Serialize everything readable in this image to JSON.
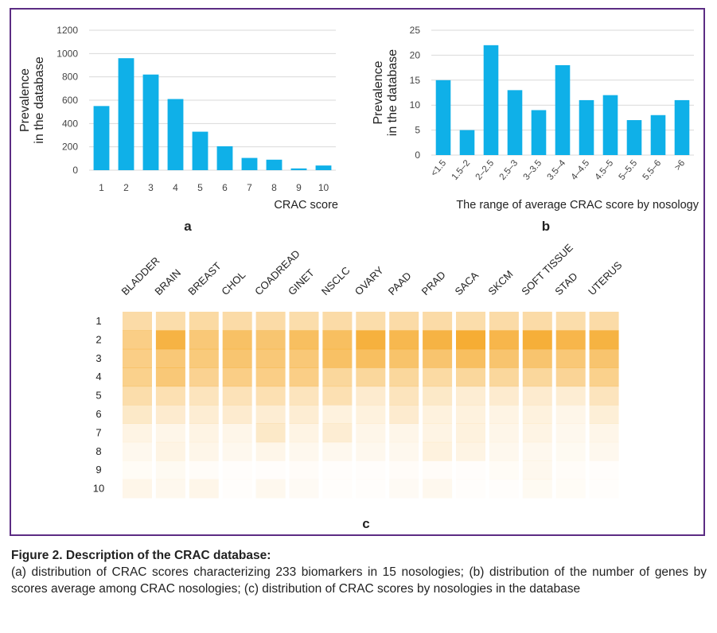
{
  "figure": {
    "panel_letters": [
      "a",
      "b",
      "c"
    ],
    "caption_title": "Figure 2. Description of the CRAC database:",
    "caption_text": "(a) distribution of CRAC scores characterizing 233 biomarkers in 15 nosologies; (b) distribution of the number of genes by scores average among CRAC nosologies; (c) distribution of CRAC scores by nosologies in the database"
  },
  "colors": {
    "bar": "#0fb0e8",
    "frame": "#5b2c83",
    "heat": "#f5a623",
    "grid": "#d9d9d9"
  },
  "chart_data": [
    {
      "type": "bar",
      "panel": "a",
      "categories": [
        "1",
        "2",
        "3",
        "4",
        "5",
        "6",
        "7",
        "8",
        "9",
        "10"
      ],
      "values": [
        550,
        960,
        820,
        610,
        330,
        205,
        105,
        90,
        15,
        40
      ],
      "xlabel": "CRAC score",
      "ylabel": "Prevalence in the database",
      "ylabel_lines": [
        "Prevalence",
        "in the database"
      ],
      "ylim": [
        0,
        1200
      ],
      "yticks": [
        0,
        200,
        400,
        600,
        800,
        1000,
        1200
      ],
      "ytick_labels": [
        "0",
        "200",
        "400",
        "600",
        "800",
        "1000",
        "1200"
      ],
      "grid": true
    },
    {
      "type": "bar",
      "panel": "b",
      "categories": [
        "<1.5",
        "1.5–2",
        "2–2.5",
        "2.5–3",
        "3–3.5",
        "3.5–4",
        "4–4.5",
        "4.5–5",
        "5–5.5",
        "5.5–6",
        ">6"
      ],
      "values": [
        15,
        5,
        22,
        13,
        9,
        18,
        11,
        12,
        7,
        8,
        11
      ],
      "xlabel": "The range of average CRAC score by nosology",
      "ylabel": "Prevalence in the database",
      "ylabel_lines": [
        "Prevalence",
        "in the database"
      ],
      "ylim": [
        0,
        25
      ],
      "yticks": [
        0,
        5,
        10,
        15,
        20,
        25
      ],
      "ytick_labels": [
        "0",
        "5",
        "10",
        "15",
        "20",
        "25"
      ],
      "grid": true
    },
    {
      "type": "heatmap",
      "panel": "c",
      "columns": [
        "BLADDER",
        "BRAIN",
        "BREAST",
        "CHOL",
        "COADREAD",
        "GINET",
        "NSCLC",
        "OVARY",
        "PAAD",
        "PRAD",
        "SACA",
        "SKCM",
        "SOFT TISSUE",
        "STAD",
        "UTERUS"
      ],
      "rows": [
        "1",
        "2",
        "3",
        "4",
        "5",
        "6",
        "7",
        "8",
        "9",
        "10"
      ],
      "values": [
        [
          0.4,
          0.38,
          0.42,
          0.4,
          0.4,
          0.38,
          0.4,
          0.38,
          0.4,
          0.4,
          0.38,
          0.4,
          0.4,
          0.38,
          0.4
        ],
        [
          0.55,
          0.85,
          0.62,
          0.7,
          0.65,
          0.72,
          0.72,
          0.88,
          0.8,
          0.85,
          0.92,
          0.82,
          0.9,
          0.82,
          0.86
        ],
        [
          0.55,
          0.62,
          0.6,
          0.65,
          0.62,
          0.62,
          0.7,
          0.72,
          0.68,
          0.66,
          0.72,
          0.66,
          0.66,
          0.62,
          0.66
        ],
        [
          0.52,
          0.62,
          0.5,
          0.55,
          0.55,
          0.55,
          0.45,
          0.45,
          0.45,
          0.42,
          0.45,
          0.45,
          0.45,
          0.48,
          0.52
        ],
        [
          0.38,
          0.35,
          0.3,
          0.32,
          0.35,
          0.3,
          0.35,
          0.22,
          0.3,
          0.25,
          0.2,
          0.22,
          0.22,
          0.2,
          0.3
        ],
        [
          0.25,
          0.22,
          0.2,
          0.22,
          0.2,
          0.2,
          0.15,
          0.15,
          0.22,
          0.15,
          0.15,
          0.12,
          0.15,
          0.1,
          0.18
        ],
        [
          0.12,
          0.1,
          0.12,
          0.1,
          0.25,
          0.12,
          0.2,
          0.1,
          0.1,
          0.12,
          0.15,
          0.1,
          0.12,
          0.08,
          0.1
        ],
        [
          0.08,
          0.12,
          0.1,
          0.08,
          0.1,
          0.08,
          0.08,
          0.08,
          0.08,
          0.15,
          0.12,
          0.08,
          0.08,
          0.06,
          0.08
        ],
        [
          0.04,
          0.06,
          0.03,
          0.02,
          0.02,
          0.03,
          0.02,
          0.02,
          0.03,
          0.03,
          0.02,
          0.04,
          0.08,
          0.03,
          0.02
        ],
        [
          0.1,
          0.08,
          0.1,
          0.02,
          0.08,
          0.05,
          0.02,
          0.02,
          0.05,
          0.08,
          0.02,
          0.02,
          0.06,
          0.04,
          0.02
        ]
      ],
      "color": "#f5a623"
    }
  ]
}
